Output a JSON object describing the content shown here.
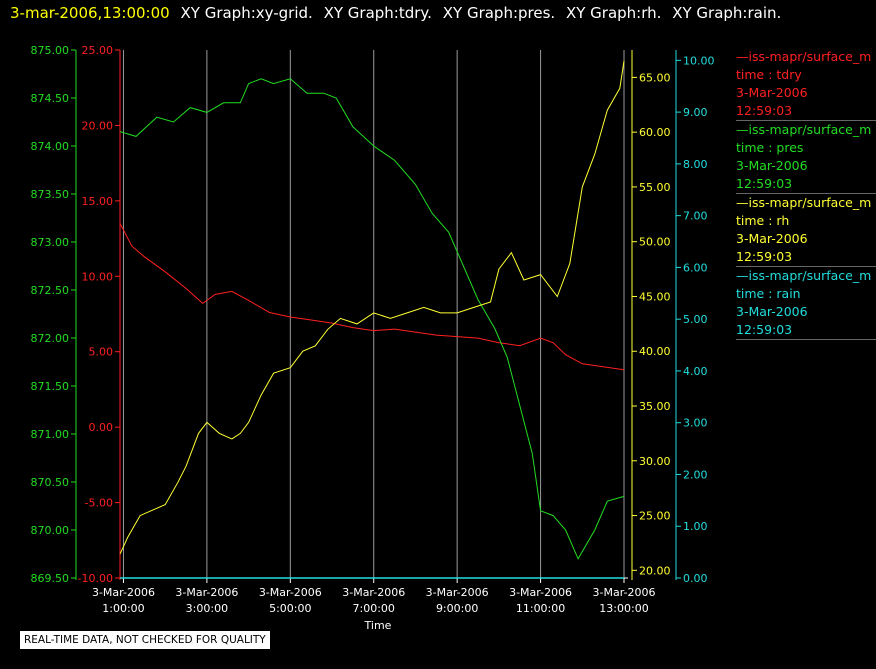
{
  "header": {
    "timestamp": "3-mar-2006,13:00:00",
    "titles": [
      "XY Graph:xy-grid.",
      "XY Graph:tdry.",
      "XY Graph:pres.",
      "XY Graph:rh.",
      "XY Graph:rain."
    ]
  },
  "legend": [
    {
      "name": "—iss-mapr/surface_m",
      "label": "time : tdry",
      "date": "3-Mar-2006",
      "time": "12:59:03",
      "color": "#ff2020"
    },
    {
      "name": "—iss-mapr/surface_m",
      "label": "time : pres",
      "date": "3-Mar-2006",
      "time": "12:59:03",
      "color": "#22dd22"
    },
    {
      "name": "—iss-mapr/surface_m",
      "label": "time : rh",
      "date": "3-Mar-2006",
      "time": "12:59:03",
      "color": "#ffff33"
    },
    {
      "name": "—iss-mapr/surface_m",
      "label": "time : rain",
      "date": "3-Mar-2006",
      "time": "12:59:03",
      "color": "#22dddd"
    }
  ],
  "disclaimer": "REAL-TIME DATA, NOT CHECKED FOR QUALITY",
  "chart_data": {
    "type": "line",
    "xlabel": "Time",
    "x_range": [
      "3-Mar-2006 00:55",
      "3-Mar-2006 13:00"
    ],
    "x_ticks": [
      {
        "date": "3-Mar-2006",
        "time": "1:00:00",
        "hour": 1
      },
      {
        "date": "3-Mar-2006",
        "time": "3:00:00",
        "hour": 3
      },
      {
        "date": "3-Mar-2006",
        "time": "5:00:00",
        "hour": 5
      },
      {
        "date": "3-Mar-2006",
        "time": "7:00:00",
        "hour": 7
      },
      {
        "date": "3-Mar-2006",
        "time": "9:00:00",
        "hour": 9
      },
      {
        "date": "3-Mar-2006",
        "time": "11:00:00",
        "hour": 11
      },
      {
        "date": "3-Mar-2006",
        "time": "13:00:00",
        "hour": 13
      }
    ],
    "grid": "vertical lines at tick hours",
    "axes": {
      "pres": {
        "color": "#22dd22",
        "range": [
          869.5,
          875.0
        ],
        "ticks": [
          "869.50",
          "870.00",
          "870.50",
          "871.00",
          "871.50",
          "872.00",
          "872.50",
          "873.00",
          "873.50",
          "874.00",
          "874.50",
          "875.00"
        ]
      },
      "tdry": {
        "color": "#ff2020",
        "range": [
          -10,
          25
        ],
        "ticks": [
          "-10.00",
          "-5.00",
          "0.00",
          "5.00",
          "10.00",
          "15.00",
          "20.00",
          "25.00"
        ]
      },
      "rh": {
        "color": "#ffff33",
        "range": [
          19.3,
          67.5
        ],
        "ticks": [
          "20.00",
          "25.00",
          "30.00",
          "35.00",
          "40.00",
          "45.00",
          "50.00",
          "55.00",
          "60.00",
          "65.00"
        ]
      },
      "rain": {
        "color": "#22dddd",
        "range": [
          0,
          10.2
        ],
        "ticks": [
          "0.00",
          "1.00",
          "2.00",
          "3.00",
          "4.00",
          "5.00",
          "6.00",
          "7.00",
          "8.00",
          "9.00",
          "10.00"
        ]
      }
    },
    "series": [
      {
        "name": "tdry",
        "color": "#ff2020",
        "axis": "tdry",
        "x": [
          0.92,
          1.2,
          1.5,
          2.0,
          2.5,
          2.9,
          3.2,
          3.6,
          4.0,
          4.5,
          5.0,
          5.5,
          6.0,
          6.5,
          7.0,
          7.5,
          8.0,
          8.5,
          9.0,
          9.5,
          10.0,
          10.5,
          11.0,
          11.3,
          11.6,
          12.0,
          12.5,
          13.0
        ],
        "y": [
          13.5,
          12.0,
          11.3,
          10.3,
          9.2,
          8.2,
          8.8,
          9.0,
          8.4,
          7.6,
          7.3,
          7.1,
          6.9,
          6.6,
          6.4,
          6.5,
          6.3,
          6.1,
          6.0,
          5.9,
          5.6,
          5.4,
          5.9,
          5.6,
          4.8,
          4.2,
          4.0,
          3.8
        ]
      },
      {
        "name": "pres",
        "color": "#22dd22",
        "axis": "pres",
        "x": [
          0.92,
          1.3,
          1.8,
          2.2,
          2.6,
          3.0,
          3.4,
          3.8,
          4.0,
          4.3,
          4.6,
          5.0,
          5.4,
          5.8,
          6.1,
          6.5,
          7.0,
          7.5,
          8.0,
          8.4,
          8.8,
          9.1,
          9.5,
          9.9,
          10.2,
          10.5,
          10.8,
          11.0,
          11.3,
          11.6,
          11.9,
          12.3,
          12.6,
          13.0
        ],
        "y": [
          874.15,
          874.1,
          874.3,
          874.25,
          874.4,
          874.35,
          874.45,
          874.45,
          874.65,
          874.7,
          874.65,
          874.7,
          874.55,
          874.55,
          874.5,
          874.2,
          874.0,
          873.85,
          873.6,
          873.3,
          873.1,
          872.8,
          872.4,
          872.1,
          871.8,
          871.3,
          870.8,
          870.2,
          870.15,
          870.0,
          869.7,
          870.0,
          870.3,
          870.35
        ]
      },
      {
        "name": "rh",
        "color": "#ffff33",
        "axis": "rh",
        "x": [
          0.92,
          1.1,
          1.4,
          1.7,
          2.0,
          2.3,
          2.5,
          2.8,
          3.0,
          3.3,
          3.6,
          3.8,
          4.0,
          4.3,
          4.6,
          5.0,
          5.3,
          5.6,
          5.9,
          6.2,
          6.6,
          7.0,
          7.4,
          7.8,
          8.2,
          8.6,
          9.0,
          9.4,
          9.8,
          10.0,
          10.3,
          10.6,
          11.0,
          11.4,
          11.7,
          12.0,
          12.3,
          12.6,
          12.9,
          13.0
        ],
        "y": [
          21.5,
          23.0,
          25.0,
          25.5,
          26.0,
          28.0,
          29.5,
          32.5,
          33.5,
          32.5,
          32.0,
          32.5,
          33.5,
          36.0,
          38.0,
          38.5,
          40.0,
          40.5,
          42.0,
          43.0,
          42.5,
          43.5,
          43.0,
          43.5,
          44.0,
          43.5,
          43.5,
          44.0,
          44.5,
          47.5,
          49.0,
          46.5,
          47.0,
          45.0,
          48.0,
          55.0,
          58.0,
          62.0,
          64.0,
          66.5
        ]
      },
      {
        "name": "rain",
        "color": "#22dddd",
        "axis": "rain",
        "x": [
          0.92,
          13.0
        ],
        "y": [
          0.0,
          0.0
        ]
      }
    ]
  }
}
